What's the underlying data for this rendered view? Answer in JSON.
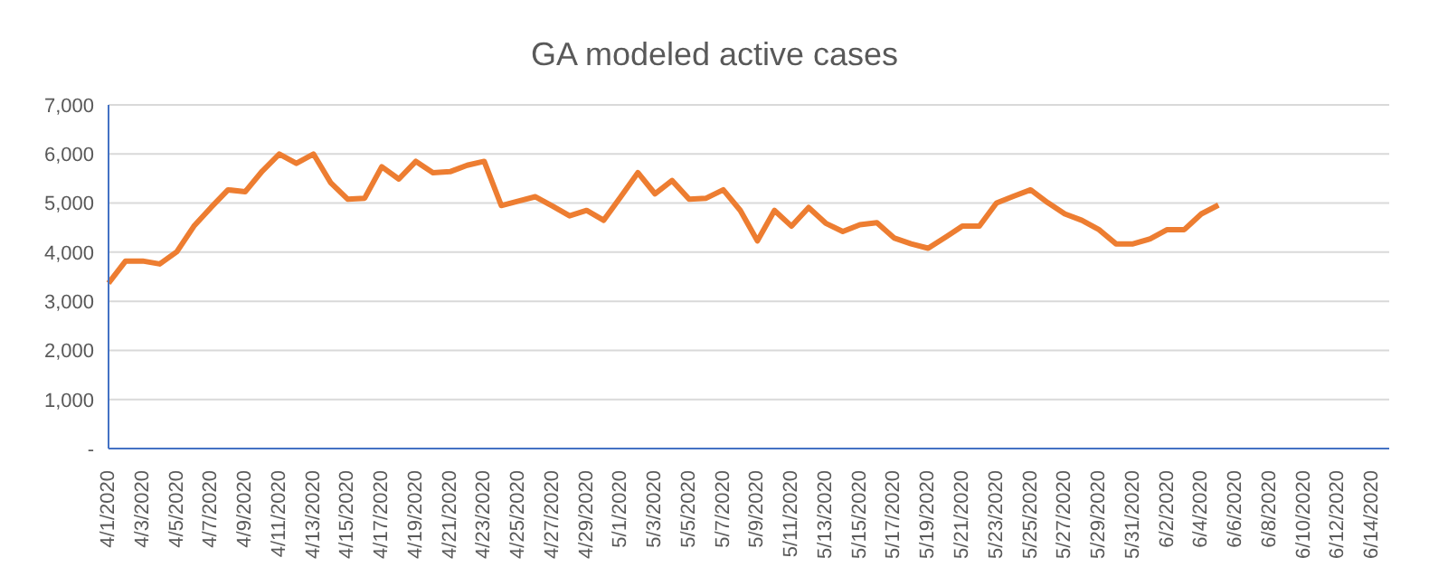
{
  "chart_data": {
    "type": "line",
    "title": "GA modeled active cases",
    "categories": [
      "4/1/2020",
      null,
      "4/3/2020",
      null,
      "4/5/2020",
      null,
      "4/7/2020",
      null,
      "4/9/2020",
      null,
      "4/11/2020",
      null,
      "4/13/2020",
      null,
      "4/15/2020",
      null,
      "4/17/2020",
      null,
      "4/19/2020",
      null,
      "4/21/2020",
      null,
      "4/23/2020",
      null,
      "4/25/2020",
      null,
      "4/27/2020",
      null,
      "4/29/2020",
      null,
      "5/1/2020",
      null,
      "5/3/2020",
      null,
      "5/5/2020",
      null,
      "5/7/2020",
      null,
      "5/9/2020",
      null,
      "5/11/2020",
      null,
      "5/13/2020",
      null,
      "5/15/2020",
      null,
      "5/17/2020",
      null,
      "5/19/2020",
      null,
      "5/21/2020",
      null,
      "5/23/2020",
      null,
      "5/25/2020",
      null,
      "5/27/2020",
      null,
      "5/29/2020",
      null,
      "5/31/2020",
      null,
      "6/2/2020",
      null,
      "6/4/2020",
      null,
      "6/6/2020",
      null,
      "6/8/2020",
      null,
      "6/10/2020",
      null,
      "6/12/2020",
      null,
      "6/14/2020",
      null
    ],
    "series": [
      {
        "color": "#ed7d31",
        "values": [
          3370,
          3820,
          3820,
          3760,
          4010,
          4530,
          4910,
          5270,
          5230,
          5650,
          6000,
          5810,
          6000,
          5420,
          5080,
          5100,
          5740,
          5490,
          5850,
          5620,
          5640,
          5770,
          5850,
          4950,
          5040,
          5130,
          4940,
          4740,
          4850,
          4650,
          5130,
          5620,
          5190,
          5460,
          5080,
          5100,
          5270,
          4850,
          4230,
          4850,
          4530,
          4910,
          4590,
          4420,
          4560,
          4600,
          4290,
          4170,
          4080,
          4300,
          4530,
          4530,
          5000,
          5140,
          5270,
          5010,
          4780,
          4650,
          4460,
          4170,
          4170,
          4270,
          4460,
          4460,
          4780,
          4960,
          null,
          null,
          null,
          null,
          null,
          null,
          null,
          null,
          null,
          null
        ]
      }
    ],
    "ylim": [
      0,
      7000
    ],
    "yticks": [
      {
        "value": 0,
        "label": "-"
      },
      {
        "value": 1000,
        "label": "1,000"
      },
      {
        "value": 2000,
        "label": "2,000"
      },
      {
        "value": 3000,
        "label": "3,000"
      },
      {
        "value": 4000,
        "label": "4,000"
      },
      {
        "value": 5000,
        "label": "5,000"
      },
      {
        "value": 6000,
        "label": "6,000"
      },
      {
        "value": 7000,
        "label": "7,000"
      }
    ],
    "grid": "y",
    "marker": "none",
    "line_style": "solid"
  }
}
